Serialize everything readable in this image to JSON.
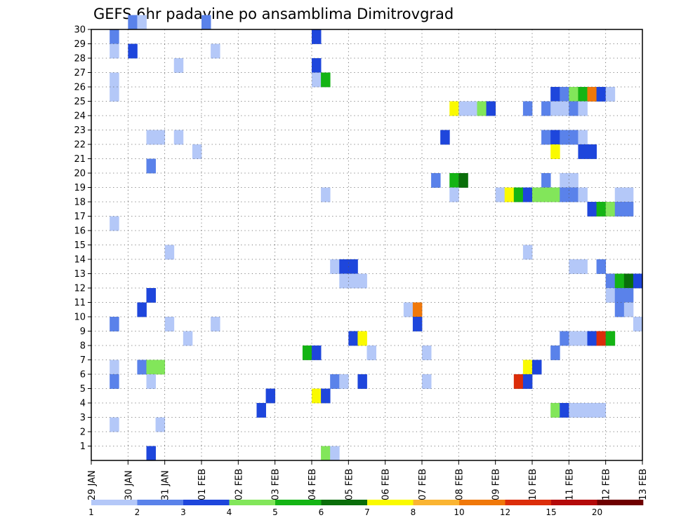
{
  "chart_data": {
    "type": "heatmap",
    "title": "GEFS 6hr padavine po ansamblima Dimitrovgrad",
    "xlabel": "",
    "ylabel": "",
    "x_range": [
      "29 JAN 00Z",
      "13 FEB 00Z"
    ],
    "x_ticks": [
      "29 JAN",
      "30 JAN",
      "31 JAN",
      "01 FEB",
      "02 FEB",
      "03 FEB",
      "04 FEB",
      "05 FEB",
      "06 FEB",
      "07 FEB",
      "08 FEB",
      "09 FEB",
      "10 FEB",
      "11 FEB",
      "12 FEB",
      "13 FEB"
    ],
    "y_ticks": [
      "1",
      "2",
      "3",
      "4",
      "5",
      "6",
      "7",
      "8",
      "9",
      "10",
      "11",
      "12",
      "13",
      "14",
      "15",
      "16",
      "17",
      "18",
      "19",
      "20",
      "21",
      "22",
      "23",
      "24",
      "25",
      "26",
      "27",
      "28",
      "29",
      "30"
    ],
    "grid": true,
    "legend": {
      "placement": "bottom",
      "labels": [
        "1",
        "2",
        "3",
        "4",
        "5",
        "6",
        "7",
        "8",
        "10",
        "12",
        "15",
        "20"
      ],
      "colors": [
        "#b4c8f8",
        "#5a82ea",
        "#1e46dc",
        "#82e65a",
        "#14b414",
        "#0a6e0a",
        "#fafa00",
        "#fab432",
        "#f0780a",
        "#dc2d0a",
        "#b40a0a",
        "#6e0000"
      ]
    },
    "cells": [
      [
        1,
        30,
        1
      ],
      [
        1.25,
        30,
        0
      ],
      [
        3,
        30,
        1
      ],
      [
        0.5,
        29,
        1
      ],
      [
        6,
        29,
        2
      ],
      [
        0.5,
        28,
        0
      ],
      [
        1,
        28,
        2
      ],
      [
        3.25,
        28,
        0
      ],
      [
        2.25,
        27,
        0
      ],
      [
        6,
        27,
        2
      ],
      [
        0.5,
        26,
        0
      ],
      [
        6,
        26,
        0
      ],
      [
        6.25,
        26,
        4
      ],
      [
        0.5,
        25,
        0
      ],
      [
        12.5,
        25,
        2
      ],
      [
        12.75,
        25,
        1
      ],
      [
        13,
        25,
        3
      ],
      [
        13.25,
        25,
        4
      ],
      [
        13.5,
        25,
        8
      ],
      [
        13.75,
        25,
        2
      ],
      [
        14,
        25,
        0
      ],
      [
        9.75,
        24,
        6
      ],
      [
        10,
        24,
        0
      ],
      [
        10.25,
        24,
        0
      ],
      [
        10.5,
        24,
        3
      ],
      [
        10.75,
        24,
        2
      ],
      [
        11.75,
        24,
        1
      ],
      [
        12.25,
        24,
        1
      ],
      [
        12.5,
        24,
        0
      ],
      [
        12.75,
        24,
        0
      ],
      [
        13,
        24,
        1
      ],
      [
        13.25,
        24,
        0
      ],
      [
        1.5,
        22,
        0
      ],
      [
        1.75,
        22,
        0
      ],
      [
        2.25,
        22,
        0
      ],
      [
        9.5,
        22,
        2
      ],
      [
        12.25,
        22,
        1
      ],
      [
        12.5,
        22,
        2
      ],
      [
        12.75,
        22,
        1
      ],
      [
        13,
        22,
        1
      ],
      [
        13.25,
        22,
        0
      ],
      [
        2.75,
        21,
        0
      ],
      [
        12.5,
        21,
        6
      ],
      [
        13.25,
        21,
        2
      ],
      [
        13.5,
        21,
        2
      ],
      [
        1.5,
        20,
        1
      ],
      [
        9.25,
        19,
        1
      ],
      [
        9.75,
        19,
        4
      ],
      [
        10,
        19,
        5
      ],
      [
        12.25,
        19,
        1
      ],
      [
        12.75,
        19,
        0
      ],
      [
        13,
        19,
        0
      ],
      [
        6.25,
        18,
        0
      ],
      [
        9.75,
        18,
        0
      ],
      [
        11,
        18,
        0
      ],
      [
        11.25,
        18,
        6
      ],
      [
        11.5,
        18,
        4
      ],
      [
        11.75,
        18,
        2
      ],
      [
        12,
        18,
        3
      ],
      [
        12.25,
        18,
        3
      ],
      [
        12.5,
        18,
        3
      ],
      [
        12.75,
        18,
        1
      ],
      [
        13,
        18,
        1
      ],
      [
        13.25,
        18,
        0
      ],
      [
        14.25,
        18,
        0
      ],
      [
        14.5,
        18,
        0
      ],
      [
        13.5,
        17,
        2
      ],
      [
        13.75,
        17,
        4
      ],
      [
        14,
        17,
        3
      ],
      [
        14.25,
        17,
        1
      ],
      [
        14.5,
        17,
        1
      ],
      [
        0.5,
        16,
        0
      ],
      [
        2,
        14,
        0
      ],
      [
        11.75,
        14,
        0
      ],
      [
        6.5,
        13,
        0
      ],
      [
        6.75,
        13,
        2
      ],
      [
        7,
        13,
        2
      ],
      [
        13,
        13,
        0
      ],
      [
        13.25,
        13,
        0
      ],
      [
        13.75,
        13,
        1
      ],
      [
        6.75,
        12,
        0
      ],
      [
        7,
        12,
        0
      ],
      [
        7.25,
        12,
        0
      ],
      [
        14,
        12,
        1
      ],
      [
        14.25,
        12,
        4
      ],
      [
        14.5,
        12,
        5
      ],
      [
        14.75,
        12,
        2
      ],
      [
        14,
        11,
        0
      ],
      [
        14.25,
        11,
        1
      ],
      [
        14.5,
        11,
        1
      ],
      [
        1.5,
        11,
        2
      ],
      [
        1.25,
        10,
        2
      ],
      [
        8.5,
        10,
        0
      ],
      [
        8.75,
        10,
        8
      ],
      [
        14.25,
        10,
        1
      ],
      [
        14.5,
        10,
        0
      ],
      [
        0.5,
        9,
        1
      ],
      [
        2,
        9,
        0
      ],
      [
        3.25,
        9,
        0
      ],
      [
        8.75,
        9,
        2
      ],
      [
        14.75,
        9,
        0
      ],
      [
        2.5,
        8,
        0
      ],
      [
        7,
        8,
        2
      ],
      [
        7.25,
        8,
        6
      ],
      [
        12.75,
        8,
        1
      ],
      [
        13,
        8,
        0
      ],
      [
        13.25,
        8,
        0
      ],
      [
        13.5,
        8,
        2
      ],
      [
        13.75,
        8,
        9
      ],
      [
        14,
        8,
        4
      ],
      [
        5.75,
        7,
        4
      ],
      [
        6,
        7,
        2
      ],
      [
        7.5,
        7,
        0
      ],
      [
        9,
        7,
        0
      ],
      [
        12.5,
        7,
        1
      ],
      [
        0.5,
        6,
        0
      ],
      [
        1.25,
        6,
        1
      ],
      [
        1.5,
        6,
        3
      ],
      [
        1.75,
        6,
        3
      ],
      [
        11.75,
        6,
        6
      ],
      [
        12,
        6,
        2
      ],
      [
        0.5,
        5,
        1
      ],
      [
        1.5,
        5,
        0
      ],
      [
        6.5,
        5,
        1
      ],
      [
        6.75,
        5,
        0
      ],
      [
        7.25,
        5,
        2
      ],
      [
        9,
        5,
        0
      ],
      [
        11.5,
        5,
        9
      ],
      [
        11.75,
        5,
        2
      ],
      [
        4.75,
        4,
        2
      ],
      [
        6,
        4,
        6
      ],
      [
        6.25,
        4,
        2
      ],
      [
        4.5,
        3,
        2
      ],
      [
        12.5,
        3,
        3
      ],
      [
        12.75,
        3,
        2
      ],
      [
        13,
        3,
        0
      ],
      [
        13.25,
        3,
        0
      ],
      [
        13.5,
        3,
        0
      ],
      [
        13.75,
        3,
        0
      ],
      [
        0.5,
        2,
        0
      ],
      [
        1.75,
        2,
        0
      ],
      [
        1.5,
        0,
        2
      ],
      [
        6.25,
        0,
        3
      ],
      [
        6.5,
        0,
        0
      ]
    ]
  }
}
